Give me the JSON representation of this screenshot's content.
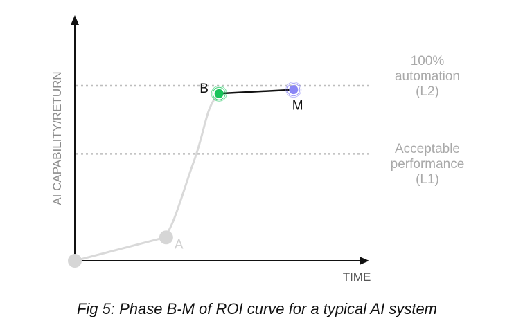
{
  "chart_data": {
    "type": "line",
    "ylabel": "AI CAPABILITY/RETURN",
    "xlabel": "TIME",
    "levels": [
      {
        "lines": [
          "100%",
          "automation",
          "(L2)"
        ],
        "value": 0.9
      },
      {
        "lines": [
          "Acceptable",
          "performance",
          "(L1)"
        ],
        "value": 0.55
      }
    ],
    "points": [
      {
        "label": "",
        "x": 0,
        "y": 0,
        "color": "#d6d6d6"
      },
      {
        "label": "A",
        "x": 0.38,
        "y": 0.12,
        "color": "#d6d6d6"
      },
      {
        "label": "B",
        "x": 0.6,
        "y": 0.86,
        "color": "#18c45a"
      },
      {
        "label": "M",
        "x": 0.91,
        "y": 0.88,
        "color": "#8a86f5"
      }
    ],
    "curve_color": "#d9d9d9",
    "highlight_color": "#111111"
  },
  "caption": "Fig 5: Phase B-M of ROI curve for a typical AI system"
}
